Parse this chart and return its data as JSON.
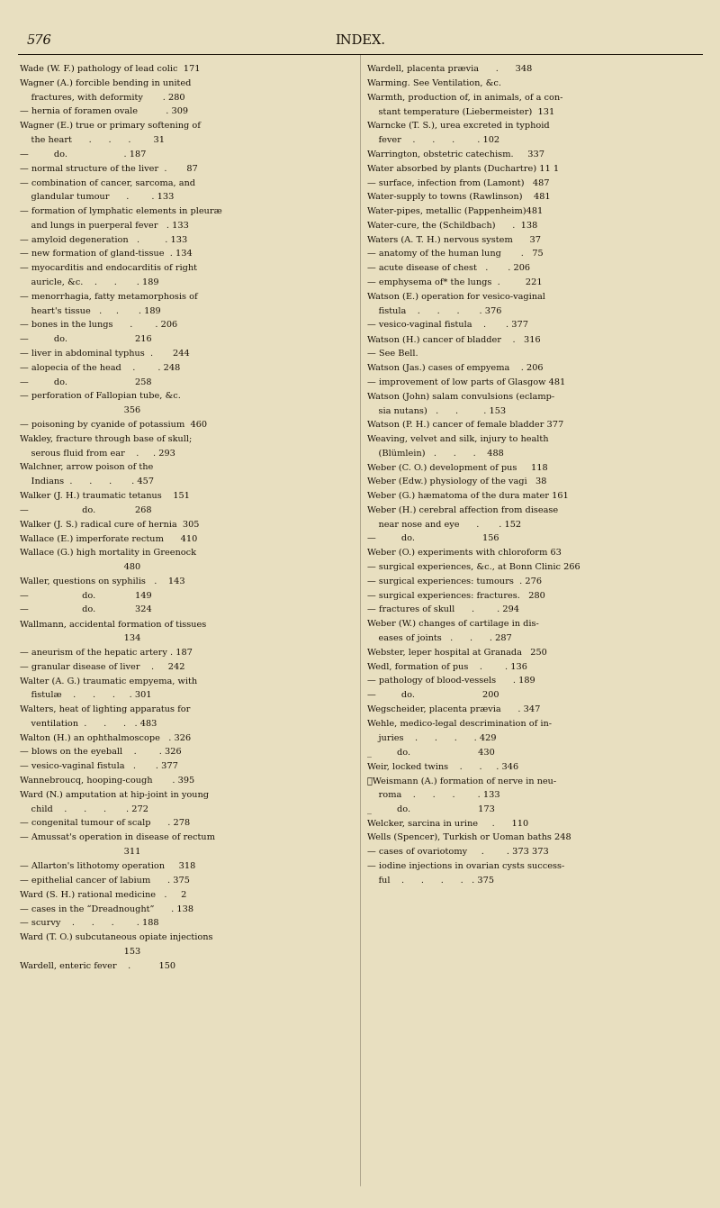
{
  "bg_color": "#e8dfc0",
  "text_color": "#1a1208",
  "page_number": "576",
  "header": "INDEX.",
  "figwidth": 8.0,
  "figheight": 13.41,
  "dpi": 100,
  "left_lines": [
    "Wade (W. F.) pathology of lead colic  171",
    "Wagner (A.) forcible bending in united",
    "    fractures, with deformity       . 280",
    "— hernia of foramen ovale          . 309",
    "Wagner (E.) true or primary softening of",
    "    the heart      .      .      .        31",
    "—         do.                    . 187",
    "— normal structure of the liver  .       87",
    "— combination of cancer, sarcoma, and",
    "    glandular tumour      .        . 133",
    "— formation of lymphatic elements in pleuræ",
    "    and lungs in puerperal fever   . 133",
    "— amyloid degeneration   .         . 133",
    "— new formation of gland-tissue  . 134",
    "— myocarditis and endocarditis of right",
    "    auricle, &c.    .      .       . 189",
    "— menorrhagia, fatty metamorphosis of",
    "    heart's tissue   .     .       . 189",
    "— bones in the lungs      .        . 206",
    "—         do.                        216",
    "— liver in abdominal typhus  .       244",
    "— alopecia of the head    .        . 248",
    "—         do.                        258",
    "— perforation of Fallopian tube, &c.",
    "                                     356",
    "— poisoning by cyanide of potassium  460",
    "Wakley, fracture through base of skull;",
    "    serous fluid from ear    .     . 293",
    "Walchner, arrow poison of the",
    "    Indians  .      .      .       . 457",
    "Walker (J. H.) traumatic tetanus    151",
    "—                   do.              268",
    "Walker (J. S.) radical cure of hernia  305",
    "Wallace (E.) imperforate rectum      410",
    "Wallace (G.) high mortality in Greenock",
    "                                     480",
    "Waller, questions on syphilis   .    143",
    "—                   do.              149",
    "—                   do.              324",
    "Wallmann, accidental formation of tissues",
    "                                     134",
    "— aneurism of the hepatic artery . 187",
    "— granular disease of liver    .     242",
    "Walter (A. G.) traumatic empyema, with",
    "    fistulæ    .      .      .     . 301",
    "Walters, heat of lighting apparatus for",
    "    ventilation  .      .      .   . 483",
    "Walton (H.) an ophthalmoscope   . 326",
    "— blows on the eyeball    .        . 326",
    "— vesico-vaginal fistula   .       . 377",
    "Wannebroucq, hooping-cough       . 395",
    "Ward (N.) amputation at hip-joint in young",
    "    child    .      .      .       . 272",
    "— congenital tumour of scalp      . 278",
    "— Amussat's operation in disease of rectum",
    "                                     311",
    "— Allarton's lithotomy operation     318",
    "— epithelial cancer of labium      . 375",
    "Ward (S. H.) rational medicine   .     2",
    "— cases in the “Dreadnought”      . 138",
    "— scurvy    .      .      .        . 188",
    "Ward (T. O.) subcutaneous opiate injections",
    "                                     153",
    "Wardell, enteric fever    .          150"
  ],
  "right_lines": [
    "Wardell, placenta prævia      .      348",
    "Warming. See Ventilation, &c.",
    "Warmth, production of, in animals, of a con-",
    "    stant temperature (Liebermeister)  131",
    "Warncke (T. S.), urea excreted in typhoid",
    "    fever    .      .      .        . 102",
    "Warrington, obstetric catechism.     337",
    "Water absorbed by plants (Duchartre) 11 1",
    "— surface, infection from (Lamont)   487",
    "Water-supply to towns (Rawlinson)    481",
    "Water-pipes, metallic (Pappenheim)481",
    "Water-cure, the (Schildbach)      .  138",
    "Waters (A. T. H.) nervous system      37",
    "— anatomy of the human lung       .   75",
    "— acute disease of chest   .       . 206",
    "— emphysema of* the lungs  .         221",
    "Watson (E.) operation for vesico-vaginal",
    "    fistula    .      .      .       . 376",
    "— vesico-vaginal fistula    .       . 377",
    "Watson (H.) cancer of bladder    .   316",
    "— See Bell.",
    "Watson (Jas.) cases of empyema    . 206",
    "— improvement of low parts of Glasgow 481",
    "Watson (John) salam convulsions (eclamp-",
    "    sia nutans)   .      .         . 153",
    "Watson (P. H.) cancer of female bladder 377",
    "Weaving, velvet and silk, injury to health",
    "    (Blümlein)   .      .      .    488",
    "Weber (C. O.) development of pus     118",
    "Weber (Edw.) physiology of the vagi   38",
    "Weber (G.) hæmatoma of the dura mater 161",
    "Weber (H.) cerebral affection from disease",
    "    near nose and eye      .       . 152",
    "—         do.                        156",
    "Weber (O.) experiments with chloroform 63",
    "— surgical experiences, &c., at Bonn Clinic 266",
    "— surgical experiences: tumours  . 276",
    "— surgical experiences: fractures.   280",
    "— fractures of skull      .        . 294",
    "Weber (W.) changes of cartilage in dis-",
    "    eases of joints   .      .      . 287",
    "Webster, leper hospital at Granada   250",
    "Wedl, formation of pus    .        . 136",
    "— pathology of blood-vessels      . 189",
    "—         do.                        200",
    "Wegscheider, placenta prævia      . 347",
    "Wehle, medico-legal descrimination of in-",
    "    juries    .      .      .      . 429",
    "_         do.                        430",
    "Weir, locked twins    .      .     . 346",
    "✱Weismann (A.) formation of nerve in neu-",
    "    roma    .      .      .        . 133",
    "_         do.                        173",
    "Welcker, sarcina in urine     .      110",
    "Wells (Spencer), Turkish or Uoman baths 248",
    "— cases of ovariotomy     .        . 373 373",
    "— iodine injections in ovarian cysts success-",
    "    ful    .      .      .      .   . 375"
  ]
}
